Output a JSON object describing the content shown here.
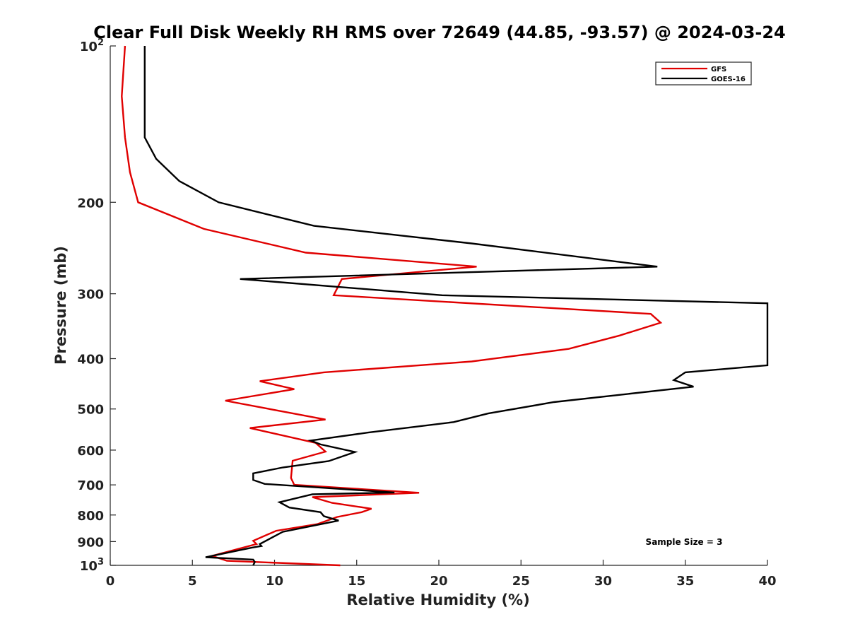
{
  "chart_data": {
    "type": "line",
    "title": "Clear Full Disk Weekly RH RMS over 72649 (44.85, -93.57) @ 2024-03-24",
    "xlabel": "Relative Humidity (%)",
    "ylabel": "Pressure (mb)",
    "xlim": [
      0,
      40
    ],
    "ylim": [
      100,
      1000
    ],
    "y_scale": "log",
    "y_reversed": true,
    "grid": false,
    "legend_position": "top-right",
    "x_ticks": [
      "0",
      "5",
      "10",
      "15",
      "20",
      "25",
      "30",
      "35",
      "40"
    ],
    "y_ticks": [
      {
        "value": 100,
        "base": "10",
        "exp": "2"
      },
      {
        "value": 200,
        "label": "200"
      },
      {
        "value": 300,
        "label": "300"
      },
      {
        "value": 400,
        "label": "400"
      },
      {
        "value": 500,
        "label": "500"
      },
      {
        "value": 600,
        "label": "600"
      },
      {
        "value": 700,
        "label": "700"
      },
      {
        "value": 800,
        "label": "800"
      },
      {
        "value": 900,
        "label": "900"
      },
      {
        "value": 1000,
        "base": "10",
        "exp": "3"
      }
    ],
    "annotation": "Sample Size = 3",
    "series": [
      {
        "name": "GFS",
        "color": "#e00000",
        "points": [
          [
            0.9,
            100
          ],
          [
            0.7,
            125
          ],
          [
            0.9,
            150
          ],
          [
            1.2,
            175
          ],
          [
            1.7,
            200
          ],
          [
            5.7,
            225
          ],
          [
            11.9,
            250
          ],
          [
            22.3,
            266
          ],
          [
            14.1,
            281
          ],
          [
            13.6,
            302
          ],
          [
            32.9,
            328
          ],
          [
            33.5,
            341
          ],
          [
            31.0,
            361
          ],
          [
            27.9,
            383
          ],
          [
            22.0,
            405
          ],
          [
            13.0,
            425
          ],
          [
            9.1,
            442
          ],
          [
            11.2,
            458
          ],
          [
            7.0,
            482
          ],
          [
            10.7,
            507
          ],
          [
            13.1,
            524
          ],
          [
            8.5,
            544
          ],
          [
            12.5,
            581
          ],
          [
            13.1,
            604
          ],
          [
            11.1,
            629
          ],
          [
            11.0,
            679
          ],
          [
            11.2,
            700
          ],
          [
            18.8,
            725
          ],
          [
            12.3,
            739
          ],
          [
            13.5,
            758
          ],
          [
            15.9,
            778
          ],
          [
            15.3,
            790
          ],
          [
            13.8,
            807
          ],
          [
            12.6,
            833
          ],
          [
            10.1,
            858
          ],
          [
            8.7,
            897
          ],
          [
            8.9,
            910
          ],
          [
            6.2,
            959
          ],
          [
            7.1,
            980
          ],
          [
            14.0,
            1000
          ]
        ]
      },
      {
        "name": "GOES-16",
        "color": "#000000",
        "points": [
          [
            2.1,
            100
          ],
          [
            2.1,
            130
          ],
          [
            2.1,
            150
          ],
          [
            2.8,
            165
          ],
          [
            4.2,
            182
          ],
          [
            6.6,
            200
          ],
          [
            12.4,
            222
          ],
          [
            22.0,
            240
          ],
          [
            33.3,
            266
          ],
          [
            7.9,
            281
          ],
          [
            20.2,
            302
          ],
          [
            40.0,
            313
          ],
          [
            40.0,
            412
          ],
          [
            35.0,
            425
          ],
          [
            34.3,
            440
          ],
          [
            35.5,
            453
          ],
          [
            27.0,
            485
          ],
          [
            23.0,
            510
          ],
          [
            20.9,
            530
          ],
          [
            15.7,
            555
          ],
          [
            12.2,
            575
          ],
          [
            12.8,
            585
          ],
          [
            14.9,
            605
          ],
          [
            13.3,
            630
          ],
          [
            10.5,
            648
          ],
          [
            8.7,
            665
          ],
          [
            8.7,
            685
          ],
          [
            9.4,
            697
          ],
          [
            17.3,
            724
          ],
          [
            12.3,
            730
          ],
          [
            10.3,
            756
          ],
          [
            10.9,
            774
          ],
          [
            12.8,
            790
          ],
          [
            13.0,
            804
          ],
          [
            13.9,
            820
          ],
          [
            10.5,
            862
          ],
          [
            9.1,
            910
          ],
          [
            9.2,
            918
          ],
          [
            8.6,
            925
          ],
          [
            5.8,
            965
          ],
          [
            8.7,
            975
          ],
          [
            8.8,
            985
          ],
          [
            8.7,
            1000
          ]
        ]
      }
    ]
  }
}
